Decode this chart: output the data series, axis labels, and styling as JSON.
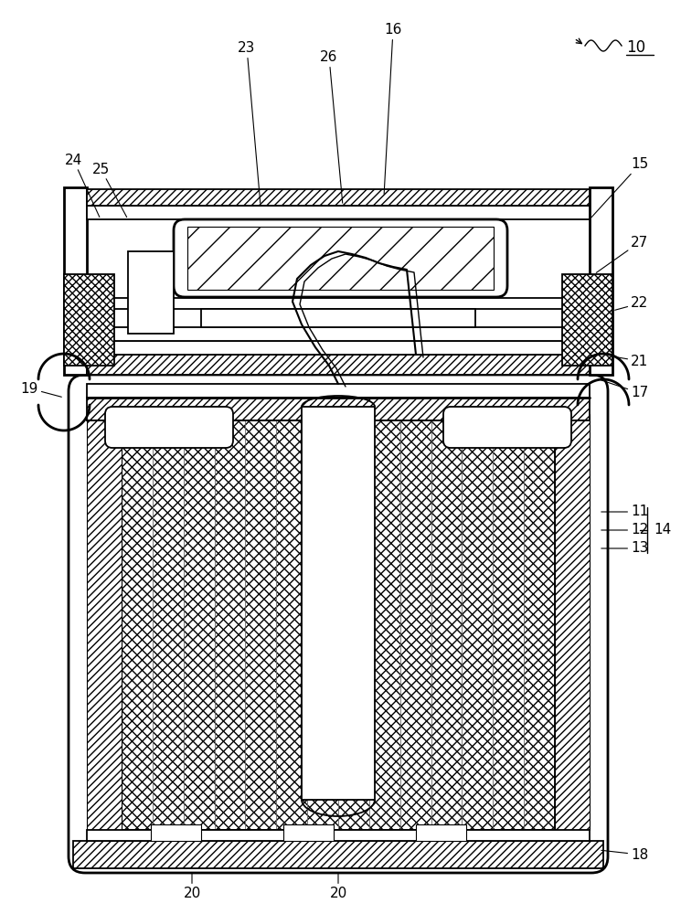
{
  "bg_color": "#ffffff",
  "line_color": "#000000",
  "figsize": [
    7.45,
    10.0
  ],
  "dpi": 100
}
